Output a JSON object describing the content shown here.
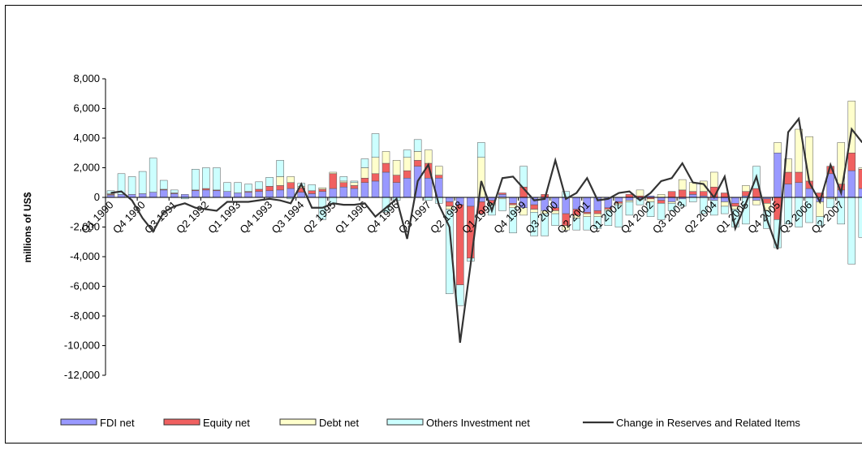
{
  "chart_data": {
    "type": "stacked-bar-line",
    "y_label": "millions of US$",
    "categories": [
      "Q1 1990",
      null,
      null,
      "Q4 1990",
      null,
      null,
      "Q3 1991",
      null,
      null,
      "Q2 1992",
      null,
      null,
      "Q1 1993",
      null,
      null,
      "Q4 1993",
      null,
      null,
      "Q3 1994",
      null,
      null,
      "Q2 1995",
      null,
      null,
      "Q1 1996",
      null,
      null,
      "Q4 1996",
      null,
      null,
      "Q3 1997",
      null,
      null,
      "Q2 1998",
      null,
      null,
      "Q1 1999",
      null,
      null,
      "Q4 1999",
      null,
      null,
      "Q3 2000",
      null,
      null,
      "Q2 2001",
      null,
      null,
      "Q1 2002",
      null,
      null,
      "Q4 2002",
      null,
      null,
      "Q3 2003",
      null,
      null,
      "Q2 2004",
      null,
      null,
      "Q1 2005",
      null,
      null,
      "Q4 2005",
      null,
      null,
      "Q3 2006",
      null,
      null,
      "Q2 2007",
      null,
      null
    ],
    "series": [
      {
        "name": "FDI net",
        "kind": "bar",
        "color": "#9999ff",
        "values": [
          150,
          200,
          200,
          250,
          350,
          500,
          250,
          200,
          450,
          500,
          450,
          400,
          300,
          350,
          400,
          450,
          500,
          600,
          350,
          250,
          400,
          600,
          700,
          600,
          1000,
          1100,
          1700,
          1000,
          1300,
          2100,
          1300,
          1300,
          -300,
          -500,
          -600,
          -300,
          -200,
          200,
          -400,
          -700,
          -500,
          -900,
          -700,
          -1100,
          -800,
          -1000,
          -900,
          -700,
          -300,
          -200,
          -100,
          100,
          -200,
          -300,
          -100,
          200,
          100,
          -200,
          -300,
          -400,
          100,
          -200,
          -100,
          3000,
          900,
          1000,
          600,
          -300,
          1600,
          500,
          1800,
          600
        ]
      },
      {
        "name": "Equity net",
        "kind": "bar",
        "color": "#f06060",
        "values": [
          50,
          0,
          0,
          0,
          0,
          50,
          50,
          0,
          50,
          100,
          50,
          0,
          0,
          50,
          150,
          300,
          300,
          400,
          300,
          200,
          150,
          1000,
          300,
          200,
          300,
          500,
          600,
          500,
          500,
          400,
          1000,
          200,
          -300,
          -5400,
          -3500,
          -800,
          -200,
          100,
          -100,
          700,
          -300,
          200,
          -200,
          -800,
          -400,
          -100,
          -200,
          -100,
          -100,
          200,
          100,
          -100,
          -200,
          400,
          500,
          200,
          300,
          700,
          300,
          -200,
          300,
          600,
          -300,
          -1500,
          800,
          700,
          500,
          300,
          500,
          400,
          1200,
          1300
        ]
      },
      {
        "name": "Debt net",
        "kind": "bar",
        "color": "#ffffcc",
        "values": [
          50,
          0,
          0,
          0,
          0,
          0,
          0,
          0,
          0,
          0,
          0,
          0,
          0,
          0,
          0,
          0,
          600,
          400,
          100,
          0,
          100,
          100,
          100,
          200,
          700,
          1100,
          800,
          1000,
          900,
          600,
          900,
          600,
          -200,
          0,
          0,
          2700,
          -100,
          -100,
          -200,
          -500,
          -200,
          -200,
          -200,
          -300,
          -200,
          -200,
          -200,
          -100,
          -100,
          -100,
          400,
          -200,
          200,
          -100,
          700,
          600,
          700,
          1000,
          -300,
          -200,
          400,
          -300,
          -500,
          700,
          900,
          2900,
          3000,
          -1000,
          -100,
          2800,
          3500,
          100
        ]
      },
      {
        "name": "Others Investment net",
        "kind": "bar",
        "color": "#ccffff",
        "values": [
          200,
          1400,
          1200,
          1500,
          2300,
          600,
          200,
          -100,
          1400,
          1400,
          1500,
          600,
          700,
          500,
          500,
          600,
          1100,
          -100,
          200,
          400,
          -1500,
          -400,
          300,
          100,
          600,
          1600,
          -1000,
          -200,
          500,
          800,
          -200,
          -400,
          -5700,
          -1400,
          -200,
          1000,
          -700,
          -800,
          -1700,
          1400,
          -1600,
          -1500,
          -800,
          400,
          -800,
          -900,
          -800,
          -1000,
          -1500,
          -900,
          -400,
          -1000,
          -1100,
          -500,
          -500,
          -300,
          -1100,
          -1000,
          -500,
          -1200,
          -1800,
          1500,
          -1200,
          -1900,
          -1800,
          -2000,
          -1700,
          -600,
          -600,
          -1800,
          -4500,
          -2700
        ]
      },
      {
        "name": "Change in Reserves and Related Items",
        "kind": "line",
        "color": "#333333",
        "values": [
          300,
          400,
          -200,
          -1400,
          -2300,
          -1000,
          -600,
          -400,
          -700,
          -800,
          -900,
          -300,
          -300,
          -300,
          -200,
          -100,
          -200,
          -400,
          900,
          -700,
          -700,
          -400,
          -500,
          -500,
          -400,
          -1300,
          -700,
          -100,
          -2800,
          1100,
          2200,
          -500,
          -2000,
          -9800,
          -4500,
          1100,
          -900,
          1300,
          1400,
          600,
          -200,
          -100,
          2500,
          -100,
          300,
          1300,
          -200,
          -100,
          300,
          400,
          -200,
          300,
          1100,
          1300,
          2300,
          1000,
          900,
          0,
          1400,
          -2100,
          -400,
          1400,
          -1500,
          -3500,
          4400,
          5300,
          1000,
          -300,
          2200,
          300,
          4600,
          3700
        ]
      }
    ],
    "ylim": [
      -12000,
      8000
    ],
    "yticks": [
      {
        "value": -12000,
        "label": "-12,000"
      },
      {
        "value": -10000,
        "label": "-10,000"
      },
      {
        "value": -8000,
        "label": "-8,000"
      },
      {
        "value": -6000,
        "label": "-6,000"
      },
      {
        "value": -4000,
        "label": "-4,000"
      },
      {
        "value": -2000,
        "label": "-2,000"
      },
      0,
      {
        "value": 2000,
        "label": "2,000"
      },
      {
        "value": 4000,
        "label": "4,000"
      },
      {
        "value": 6000,
        "label": "6,000"
      },
      {
        "value": 8000,
        "label": "8,000"
      }
    ],
    "legend": "bottom"
  }
}
